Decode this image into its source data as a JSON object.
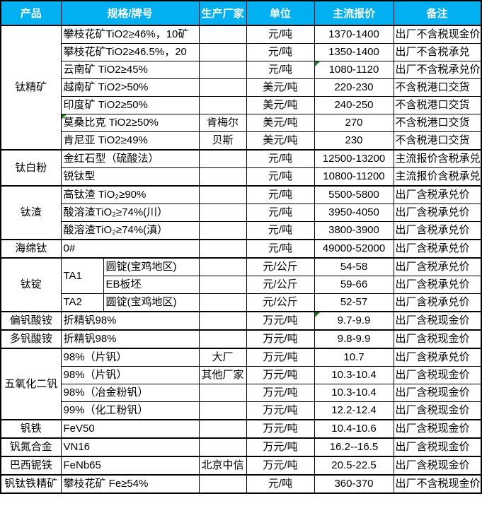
{
  "table": {
    "columns": [
      "产品",
      "规格/牌号",
      "生产厂家",
      "单位",
      "主流报价",
      "备注"
    ],
    "header_bg": "#00B0F0",
    "header_text_color": "#FFFFFF",
    "comment_marker_color": "#1E7B1E",
    "groups": [
      {
        "product": "钛精矿",
        "rows": [
          {
            "spec": "攀枝花矿TiO2≥46%，10矿",
            "maker": "",
            "unit": "元/吨",
            "price": "1370-1400",
            "note": "出厂不含税现金价"
          },
          {
            "spec": "攀枝花矿TiO2≥46.5%，20",
            "maker": "",
            "unit": "元/吨",
            "price": "1350-1400",
            "note": "出厂不含税承兑"
          },
          {
            "spec": "云南矿 TiO2≥45%",
            "maker": "",
            "unit": "元/吨",
            "price": "1080-1120",
            "note": "出厂不含税承兑价",
            "marker": "price"
          },
          {
            "spec": "越南矿 TiO2>50%",
            "maker": "",
            "unit": "美元/吨",
            "price": "220-230",
            "note": "不含税港口交货"
          },
          {
            "spec": "印度矿 TiO2≥50%",
            "maker": "",
            "unit": "美元/吨",
            "price": "240-250",
            "note": "不含税港口交货"
          },
          {
            "spec": "莫桑比克 TiO2≥50%",
            "maker": "肯梅尔",
            "unit": "美元/吨",
            "price": "270",
            "note": "不含税港口交货",
            "marker": "spec"
          },
          {
            "spec": "肯尼亚 TiO2≥49%",
            "maker": "贝斯",
            "unit": "美元/吨",
            "price": "230",
            "note": "不含税港口交货"
          }
        ]
      },
      {
        "product": "钛白粉",
        "rows": [
          {
            "spec": "金红石型（硫酸法）",
            "maker": "",
            "unit": "元/吨",
            "price": "12500-13200",
            "note": "主流报价含税承兑"
          },
          {
            "spec": "锐钛型",
            "maker": "",
            "unit": "元/吨",
            "price": "10800-11200",
            "note": "主流报价含税承兑"
          }
        ]
      },
      {
        "product": "钛渣",
        "rows": [
          {
            "spec": "高钛渣 TiO₂≥90%",
            "maker": "",
            "unit": "元/吨",
            "price": "5500-5800",
            "note": "出厂含税承兑价"
          },
          {
            "spec": "酸溶渣TiO₂≥74%(川）",
            "maker": "",
            "unit": "元/吨",
            "price": "3950-4050",
            "note": "出厂含税承兑价"
          },
          {
            "spec": "酸溶渣TiO₂≥74%(滇）",
            "maker": "",
            "unit": "元/吨",
            "price": "3800-3900",
            "note": "出厂含税承兑价"
          }
        ]
      },
      {
        "product": "海绵钛",
        "rows": [
          {
            "spec": "0#",
            "maker": "",
            "unit": "元/吨",
            "price": "49000-52000",
            "note": "出厂含税承兑价"
          }
        ]
      },
      {
        "product": "钛锭",
        "rows": [
          {
            "grade": "TA1",
            "grade_rowspan": 2,
            "spec2": "圆锭(宝鸡地区)",
            "maker": "",
            "unit": "元/公斤",
            "price": "54-58",
            "note": "出厂含税承兑价"
          },
          {
            "spec2": "EB板坯",
            "maker": "",
            "unit": "元/公斤",
            "price": "59-66",
            "note": "出厂含税承兑价"
          },
          {
            "grade": "TA2",
            "spec2": "圆锭(宝鸡地区)",
            "maker": "",
            "unit": "元/公斤",
            "price": "52-57",
            "note": "出厂含税承兑价"
          }
        ]
      },
      {
        "product": "偏钒酸铵",
        "rows": [
          {
            "spec": "折精钒98%",
            "maker": "",
            "unit": "万元/吨",
            "price": "9.7-9.9",
            "note": "出厂含税现金价",
            "marker": "price"
          }
        ]
      },
      {
        "product": "多钒酸铵",
        "rows": [
          {
            "spec": "折精钒98%",
            "maker": "",
            "unit": "万元/吨",
            "price": "9.8-9.9",
            "note": "出厂含税现金价"
          }
        ]
      },
      {
        "product": "五氧化二钒",
        "rows": [
          {
            "spec": "98%（片钒）",
            "maker": "大厂",
            "unit": "万元/吨",
            "price": "10.7",
            "note": "出厂含税承兑价"
          },
          {
            "spec": "98%（片钒）",
            "maker": "其他厂家",
            "unit": "万元/吨",
            "price": "10.3-10.4",
            "note": "出厂含税现金价"
          },
          {
            "spec": "98%（冶金粉钒）",
            "maker": "",
            "unit": "万元/吨",
            "price": "10.3-10.4",
            "note": "出厂含税现金价"
          },
          {
            "spec": "99%（化工粉钒）",
            "maker": "",
            "unit": "万元/吨",
            "price": "12.2-12.4",
            "note": "出厂含税现金价"
          }
        ]
      },
      {
        "product": "钒铁",
        "rows": [
          {
            "spec": "FeV50",
            "maker": "",
            "unit": "万元/吨",
            "price": "10.4-10.6",
            "note": "出厂含税现金价"
          }
        ]
      },
      {
        "product": "钒氮合金",
        "rows": [
          {
            "spec": "VN16",
            "maker": "",
            "unit": "万元/吨",
            "price": "16.2--16.5",
            "note": "出厂含税现金价"
          }
        ]
      },
      {
        "product": "巴西铌铁",
        "rows": [
          {
            "spec": "FeNb65",
            "maker": "北京中信",
            "unit": "万元/吨",
            "price": "20.5-22.5",
            "note": "出厂含税现金价"
          }
        ]
      },
      {
        "product": "钒钛铁精矿",
        "rows": [
          {
            "spec": "攀枝花矿 Fe≥54%",
            "maker": "",
            "unit": "元/吨",
            "price": "360-370",
            "note": "出厂不含税现金价"
          }
        ]
      }
    ]
  }
}
